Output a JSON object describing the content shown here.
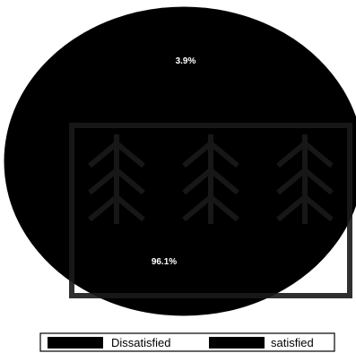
{
  "chart_data": {
    "type": "pie",
    "categories": [
      "Dissatisfied",
      "satisfied"
    ],
    "values": [
      3.9,
      96.1
    ],
    "data_labels": [
      "3.9%",
      "96.1%"
    ],
    "colors": [
      "#000000",
      "#000000"
    ],
    "label_color": "#ffffff",
    "legend": {
      "placement": "bottom",
      "entries": [
        "Dissatisfied",
        "satisfied"
      ]
    }
  }
}
